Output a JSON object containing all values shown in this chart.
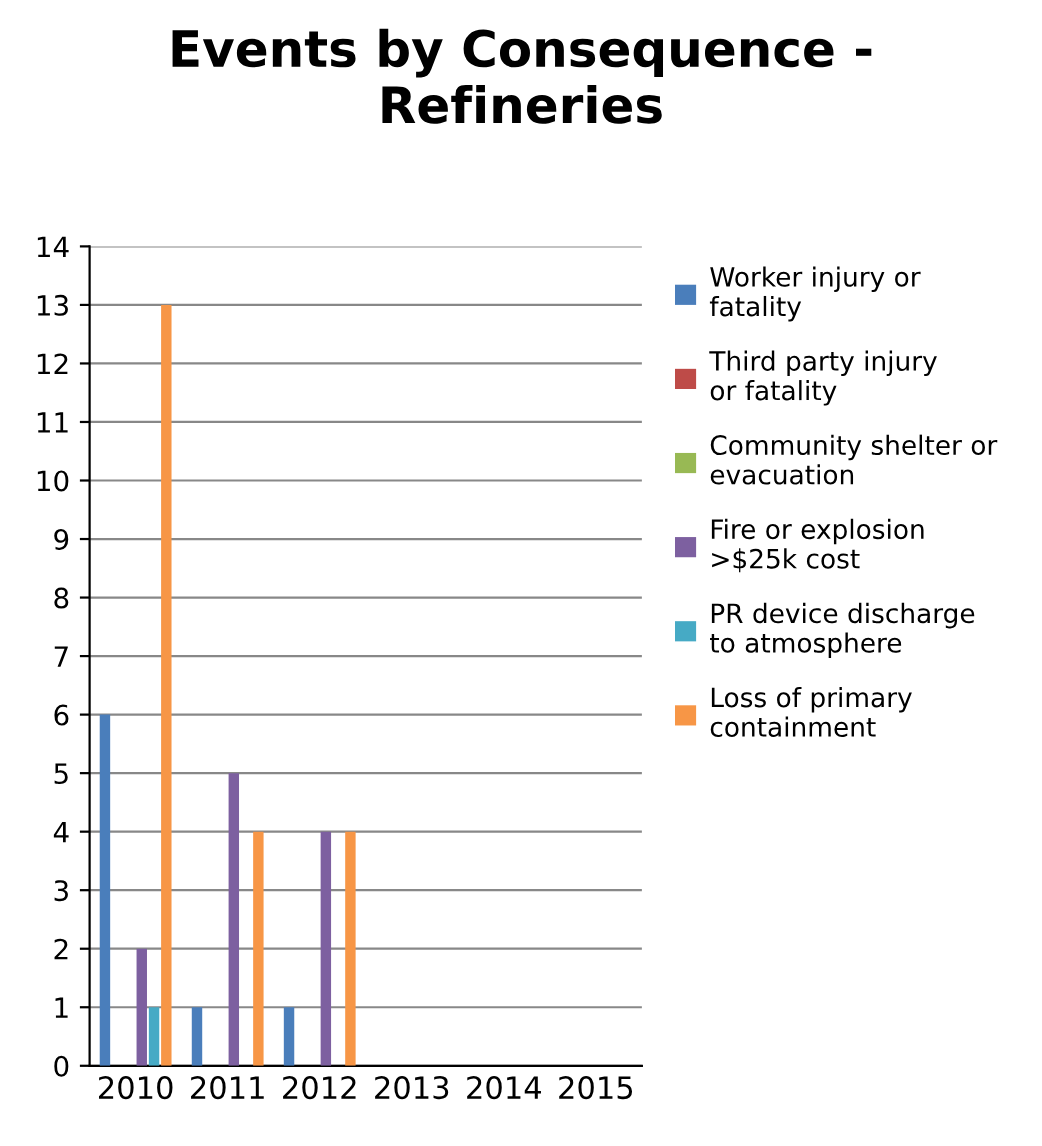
{
  "chart_data": {
    "type": "bar",
    "title": "Events by Consequence -\nRefineries",
    "categories": [
      "2010",
      "2011",
      "2012",
      "2013",
      "2014",
      "2015"
    ],
    "series": [
      {
        "name": "Worker injury or fatality",
        "color": "#4a7ebb",
        "values": [
          6,
          1,
          1,
          0,
          0,
          0
        ]
      },
      {
        "name": "Third party injury or fatality",
        "color": "#be4b48",
        "values": [
          0,
          0,
          0,
          0,
          0,
          0
        ]
      },
      {
        "name": "Community shelter or evacuation",
        "color": "#98b954",
        "values": [
          0,
          0,
          0,
          0,
          0,
          0
        ]
      },
      {
        "name": "Fire or explosion >$25k cost",
        "color": "#7d60a0",
        "values": [
          2,
          5,
          4,
          0,
          0,
          0
        ]
      },
      {
        "name": "PR device discharge to atmosphere",
        "color": "#46aac5",
        "values": [
          1,
          0,
          0,
          0,
          0,
          0
        ]
      },
      {
        "name": "Loss of primary containment",
        "color": "#f79646",
        "values": [
          13,
          4,
          4,
          0,
          0,
          0
        ]
      }
    ],
    "ylim": [
      0,
      14
    ],
    "yticks": [
      0,
      1,
      2,
      3,
      4,
      5,
      6,
      7,
      8,
      9,
      10,
      11,
      12,
      13,
      14
    ],
    "grid": "y",
    "legend": "right"
  }
}
